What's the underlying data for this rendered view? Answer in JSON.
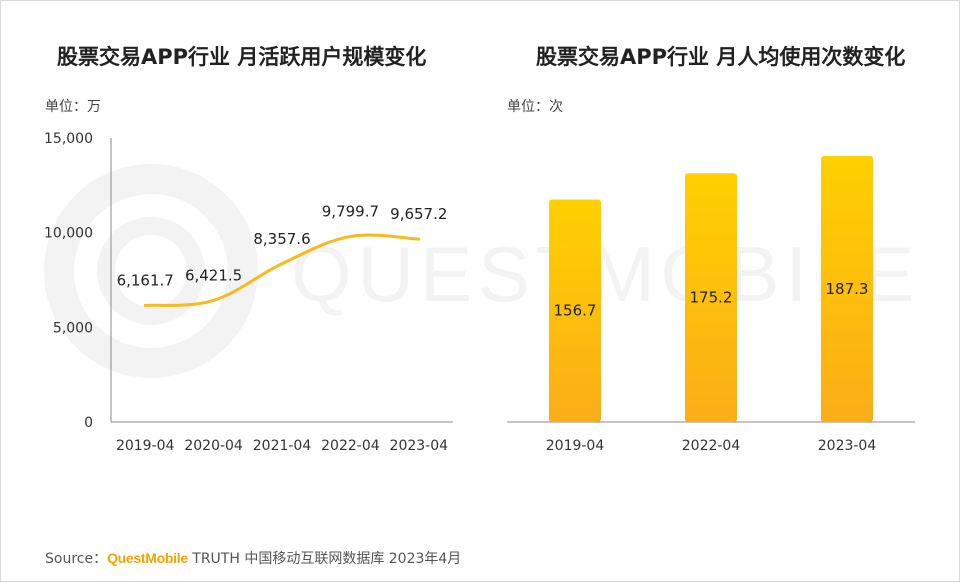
{
  "charts": {
    "left": {
      "title": "股票交易APP行业 月活跃用户规模变化",
      "unit": "单位：万"
    },
    "right": {
      "title": "股票交易APP行业 月人均使用次数变化",
      "unit": "单位：次"
    }
  },
  "source": {
    "prefix": "Source：",
    "brand": "QuestMobile",
    "suffix": " TRUTH 中国移动互联网数据库 2023年4月"
  },
  "colors": {
    "line": "#f8b91c",
    "bar_top": "#ffd000",
    "bar_bottom": "#fbad18",
    "axis": "#888888",
    "watermark": "#f2f2f2"
  },
  "chart_data": [
    {
      "type": "line",
      "title": "股票交易APP行业 月活跃用户规模变化",
      "ylabel": "单位：万",
      "categories": [
        "2019-04",
        "2020-04",
        "2021-04",
        "2022-04",
        "2023-04"
      ],
      "values": [
        6161.7,
        6421.5,
        8357.6,
        9799.7,
        9657.2
      ],
      "data_labels": [
        "6,161.7",
        "6,421.5",
        "8,357.6",
        "9,799.7",
        "9,657.2"
      ],
      "ylim": [
        0,
        15000
      ],
      "yticks": [
        0,
        5000,
        10000,
        15000
      ],
      "ytick_labels": [
        "0",
        "5,000",
        "10,000",
        "15,000"
      ],
      "grid": false,
      "smooth": true
    },
    {
      "type": "bar",
      "title": "股票交易APP行业 月人均使用次数变化",
      "ylabel": "单位：次",
      "categories": [
        "2019-04",
        "2022-04",
        "2023-04"
      ],
      "values": [
        156.7,
        175.2,
        187.3
      ],
      "data_labels": [
        "156.7",
        "175.2",
        "187.3"
      ],
      "ylim": [
        0,
        200
      ],
      "grid": false
    }
  ]
}
